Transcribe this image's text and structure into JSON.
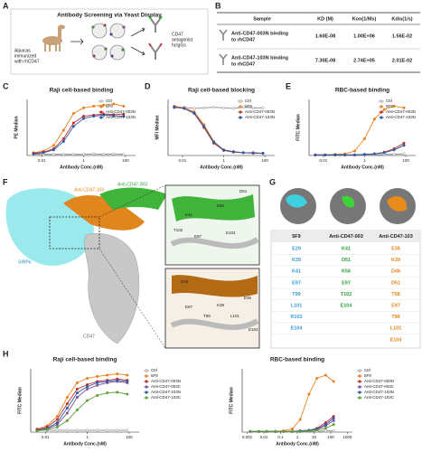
{
  "panel_letters": [
    "A",
    "B",
    "C",
    "D",
    "E",
    "F",
    "G",
    "H"
  ],
  "panel_a": {
    "title": "Antibody Screening via Yeast Display",
    "left_label": [
      "Alpacas",
      "immunized",
      "with rhCD47"
    ],
    "right_label": [
      "CD47",
      "antagonist",
      "hcIgGs"
    ]
  },
  "table_b": {
    "header": [
      "Sample",
      "KD (M)",
      "Kon(1/Ms)",
      "Kdis(1/s)"
    ],
    "rows": [
      {
        "sample": [
          "Anti-CD47-003N binding",
          "to rhCD47"
        ],
        "values": [
          "1.60E-08",
          "1.00E+06",
          "1.56E-02"
        ]
      },
      {
        "sample": [
          "Anti-CD47-103N binding",
          "to rhCD47"
        ],
        "values": [
          "7.30E-08",
          "2.74E+05",
          "2.01E-02"
        ]
      }
    ]
  },
  "panel_f": {
    "labels": [
      "Anti-CD47-103",
      "Anti-CD47-003",
      "SIRPα",
      "CD47"
    ],
    "residues_top": [
      "D51",
      "K56",
      "K41",
      "E97",
      "T102",
      "E104"
    ],
    "residues_bottom": [
      "D46",
      "E35",
      "K39",
      "E97",
      "T99",
      "L101",
      "E104"
    ]
  },
  "table_g": {
    "header": [
      "5F9",
      "Anti-CD47-003",
      "Anti-CD47-103"
    ],
    "column_colors": [
      "#3a9ad4",
      "#2f9e3c",
      "#e0861c"
    ],
    "columns": [
      [
        "E29",
        "K39",
        "K41",
        "E97",
        "T99",
        "L101",
        "R103",
        "E104"
      ],
      [
        "K41",
        "D51",
        "K56",
        "E97",
        "T102",
        "E104"
      ],
      [
        "E35",
        "K39",
        "D46",
        "D51",
        "T58",
        "E97",
        "T99",
        "L101",
        "E104"
      ]
    ]
  },
  "chart_data": [
    {
      "type": "line",
      "title": "Raji cell-based binding",
      "xlabel": "Antibody Conc.(nM)",
      "ylabel": "PE Median",
      "log_x": true,
      "legend": "upper right",
      "x": [
        0.004,
        0.012,
        0.037,
        0.11,
        0.33,
        1,
        3,
        9,
        27,
        81
      ],
      "xlim": [
        0.002,
        300
      ],
      "xticks": [
        0.01,
        1,
        100
      ],
      "ylim": [
        0,
        100
      ],
      "series": [
        {
          "name": "Ctrl",
          "color": "#8c8c8c",
          "hollow": true,
          "values": [
            2,
            2,
            2,
            2,
            2,
            2,
            3,
            2,
            3,
            2
          ]
        },
        {
          "name": "5F9",
          "color": "#e8821e",
          "values": [
            5,
            8,
            18,
            45,
            75,
            85,
            88,
            90,
            92,
            88
          ]
        },
        {
          "name": "Anti-CD47-003N",
          "color": "#c0302b",
          "values": [
            4,
            6,
            12,
            30,
            58,
            70,
            72,
            74,
            73,
            74
          ]
        },
        {
          "name": "Anti-CD47-103N",
          "color": "#2c5aa8",
          "values": [
            3,
            5,
            10,
            25,
            52,
            66,
            70,
            72,
            71,
            70
          ]
        }
      ]
    },
    {
      "type": "line",
      "title": "Raji cell-based blocking",
      "xlabel": "Antibody Conc.(nM)",
      "ylabel": "MFI Median",
      "log_x": true,
      "legend": "upper right",
      "x": [
        0.004,
        0.012,
        0.037,
        0.11,
        0.33,
        1,
        3,
        9,
        27,
        81
      ],
      "xlim": [
        0.002,
        300
      ],
      "xticks": [
        0.01,
        1,
        100
      ],
      "ylim": [
        0,
        100
      ],
      "series": [
        {
          "name": "Ctrl",
          "color": "#8c8c8c",
          "hollow": true,
          "values": [
            85,
            86,
            84,
            85,
            86,
            85,
            84,
            86,
            85,
            85
          ]
        },
        {
          "name": "5F9",
          "color": "#e8821e",
          "values": [
            88,
            85,
            78,
            55,
            25,
            10,
            6,
            5,
            5,
            4
          ]
        },
        {
          "name": "Anti-CD47-003N",
          "color": "#c0302b",
          "values": [
            87,
            84,
            75,
            50,
            22,
            9,
            6,
            5,
            4,
            4
          ]
        },
        {
          "name": "Anti-CD47-103N",
          "color": "#2c5aa8",
          "values": [
            86,
            84,
            76,
            52,
            24,
            10,
            7,
            5,
            5,
            4
          ]
        }
      ]
    },
    {
      "type": "line",
      "title": "RBC-based binding",
      "xlabel": "Antibody Conc.(nM)",
      "ylabel": "FITC Median",
      "log_x": true,
      "legend": "upper right",
      "x": [
        0.004,
        0.012,
        0.037,
        0.11,
        0.33,
        1,
        3,
        9,
        27,
        81
      ],
      "xlim": [
        0.002,
        300
      ],
      "xticks": [
        0.01,
        1,
        100
      ],
      "ylim": [
        0,
        100
      ],
      "series": [
        {
          "name": "Ctrl",
          "color": "#8c8c8c",
          "hollow": true,
          "values": [
            1,
            1,
            1,
            1,
            1,
            1,
            1,
            2,
            2,
            3
          ]
        },
        {
          "name": "5F9",
          "color": "#e8821e",
          "values": [
            1,
            1,
            2,
            3,
            8,
            30,
            65,
            82,
            88,
            85
          ]
        },
        {
          "name": "Anti-CD47-003N",
          "color": "#c0302b",
          "values": [
            1,
            1,
            1,
            1,
            1,
            2,
            3,
            6,
            12,
            22
          ]
        },
        {
          "name": "Anti-CD47-103N",
          "color": "#2c5aa8",
          "values": [
            1,
            1,
            1,
            1,
            1,
            2,
            3,
            5,
            10,
            18
          ]
        }
      ]
    },
    {
      "type": "line",
      "title": "Raji cell-based binding",
      "xlabel": "Antibody Conc.(nM)",
      "ylabel": "FITC Median",
      "log_x": true,
      "legend": "right",
      "x": [
        0.004,
        0.012,
        0.037,
        0.11,
        0.33,
        1,
        3,
        9,
        27,
        81
      ],
      "xlim": [
        0.002,
        300
      ],
      "xticks": [
        0.01,
        1,
        100
      ],
      "ylim": [
        0,
        100
      ],
      "series": [
        {
          "name": "Ctrl",
          "color": "#8c8c8c",
          "hollow": true,
          "values": [
            3,
            3,
            3,
            3,
            3,
            3,
            3,
            3,
            3,
            3
          ]
        },
        {
          "name": "5F9",
          "color": "#e8821e",
          "values": [
            5,
            10,
            25,
            55,
            78,
            85,
            88,
            90,
            92,
            90
          ]
        },
        {
          "name": "Anti-CD47-003N",
          "color": "#c0302b",
          "values": [
            4,
            8,
            20,
            45,
            68,
            75,
            80,
            82,
            84,
            82
          ]
        },
        {
          "name": "Anti-CD47-003C",
          "color": "#7a4fa0",
          "values": [
            3,
            5,
            12,
            30,
            55,
            68,
            74,
            78,
            80,
            78
          ]
        },
        {
          "name": "Anti-CD47-103N",
          "color": "#2c5aa8",
          "values": [
            3,
            6,
            15,
            38,
            62,
            72,
            78,
            80,
            82,
            80
          ]
        },
        {
          "name": "Anti-CD47-103C",
          "color": "#5e9e34",
          "values": [
            2,
            4,
            8,
            18,
            35,
            50,
            58,
            62,
            63,
            60
          ]
        }
      ]
    },
    {
      "type": "line",
      "title": "RBC-based binding",
      "xlabel": "Antibody Conc.(nM)",
      "ylabel": "FITC Median",
      "log_x": true,
      "legend": "right",
      "x": [
        0.0015,
        0.005,
        0.015,
        0.05,
        0.15,
        0.5,
        1.5,
        5,
        15,
        50,
        150
      ],
      "xlim": [
        0.0005,
        2000
      ],
      "xticks": [
        0.001,
        0.01,
        0.1,
        1,
        10,
        100,
        1000
      ],
      "ylim": [
        0,
        100
      ],
      "series": [
        {
          "name": "Ctrl",
          "color": "#8c8c8c",
          "hollow": true,
          "values": [
            1,
            1,
            1,
            1,
            1,
            1,
            1,
            1,
            1,
            2,
            2
          ]
        },
        {
          "name": "5F9",
          "color": "#e8821e",
          "values": [
            1,
            1,
            1,
            1,
            2,
            5,
            20,
            60,
            85,
            90,
            80
          ]
        },
        {
          "name": "Anti-CD47-003N",
          "color": "#c0302b",
          "values": [
            1,
            1,
            1,
            1,
            1,
            1,
            2,
            3,
            6,
            15,
            25
          ]
        },
        {
          "name": "Anti-CD47-003C",
          "color": "#7a4fa0",
          "values": [
            1,
            1,
            1,
            1,
            1,
            1,
            1,
            2,
            4,
            10,
            18
          ]
        },
        {
          "name": "Anti-CD47-103N",
          "color": "#2c5aa8",
          "values": [
            1,
            1,
            1,
            1,
            1,
            1,
            2,
            3,
            5,
            12,
            22
          ]
        },
        {
          "name": "Anti-CD47-103C",
          "color": "#5e9e34",
          "values": [
            1,
            1,
            1,
            1,
            1,
            1,
            1,
            2,
            3,
            6,
            12
          ]
        }
      ]
    }
  ]
}
